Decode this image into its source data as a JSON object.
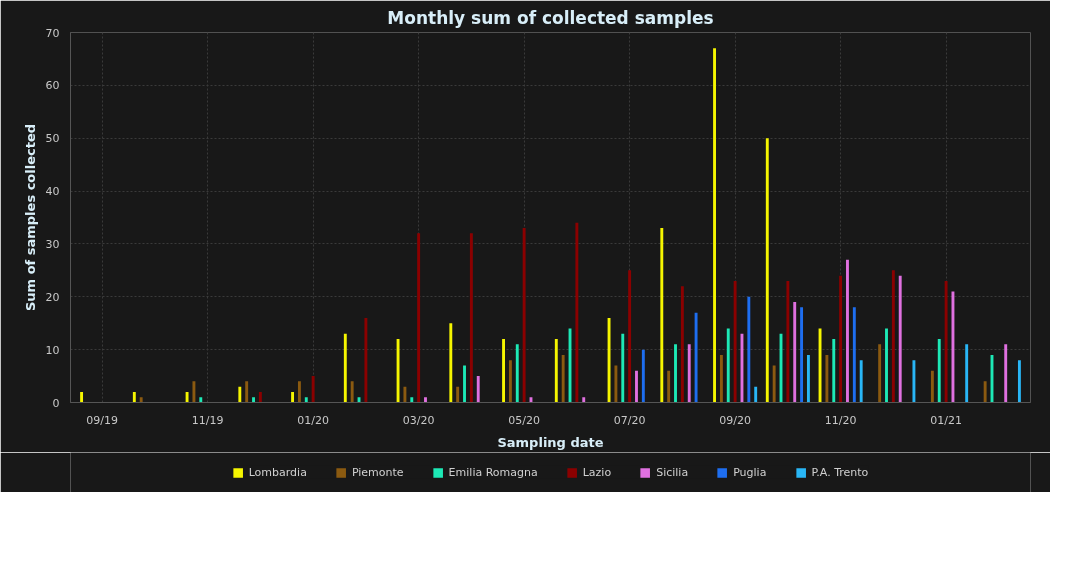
{
  "chart_data": {
    "type": "bar",
    "title": "Monthly sum of collected samples",
    "xlabel": "Sampling date",
    "ylabel": "Sum of samples collected",
    "categories": [
      "09/19",
      null,
      "11/19",
      null,
      "01/20",
      null,
      "03/20",
      null,
      "05/20",
      null,
      "07/20",
      null,
      "09/20",
      null,
      "11/20",
      null,
      "01/21",
      null
    ],
    "series": [
      {
        "name": "Lombardia",
        "color": "#f5f500",
        "values": [
          2,
          2,
          2,
          3,
          2,
          13,
          12,
          15,
          12,
          12,
          16,
          33,
          67,
          50,
          14,
          null,
          null,
          null
        ]
      },
      {
        "name": "Piemonte",
        "color": "#8b5a10",
        "values": [
          null,
          1,
          4,
          4,
          4,
          4,
          3,
          3,
          8,
          9,
          7,
          6,
          9,
          7,
          9,
          11,
          6,
          4
        ]
      },
      {
        "name": "Emilia Romagna",
        "color": "#1de9b6",
        "values": [
          null,
          null,
          1,
          1,
          1,
          1,
          1,
          7,
          11,
          14,
          13,
          11,
          14,
          13,
          12,
          14,
          12,
          9
        ]
      },
      {
        "name": "Lazio",
        "color": "#8b0000",
        "values": [
          null,
          null,
          null,
          2,
          5,
          16,
          32,
          32,
          33,
          34,
          25,
          22,
          23,
          23,
          24,
          25,
          23,
          null
        ]
      },
      {
        "name": "Sicilia",
        "color": "#e070e0",
        "values": [
          null,
          null,
          null,
          null,
          null,
          null,
          1,
          5,
          1,
          1,
          6,
          11,
          13,
          19,
          27,
          24,
          21,
          11
        ]
      },
      {
        "name": "Puglia",
        "color": "#1e6ef0",
        "values": [
          null,
          null,
          null,
          null,
          null,
          null,
          null,
          null,
          null,
          null,
          10,
          17,
          20,
          18,
          18,
          null,
          null,
          null
        ]
      },
      {
        "name": "P.A. Trento",
        "color": "#29b6f6",
        "values": [
          null,
          null,
          null,
          null,
          null,
          null,
          null,
          null,
          null,
          null,
          null,
          null,
          3,
          9,
          8,
          8,
          11,
          8
        ]
      }
    ],
    "ylim": [
      0,
      70
    ],
    "yticks": [
      0,
      10,
      20,
      30,
      40,
      50,
      60,
      70
    ],
    "grid": true,
    "legend": "bottom"
  }
}
